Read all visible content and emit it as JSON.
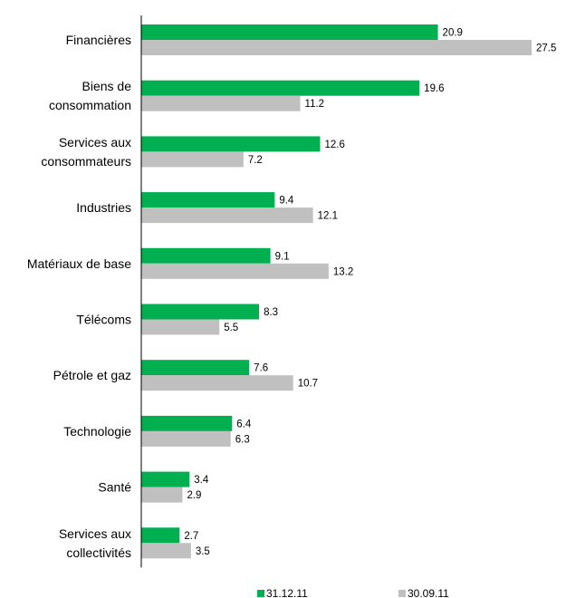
{
  "chart_data": {
    "type": "bar",
    "orientation": "horizontal",
    "categories": [
      [
        "Financières"
      ],
      [
        "Biens de",
        "consommation"
      ],
      [
        "Services aux",
        "consommateurs"
      ],
      [
        "Industries"
      ],
      [
        "Matériaux de base"
      ],
      [
        "Télécoms"
      ],
      [
        "Pétrole et gaz"
      ],
      [
        "Technologie"
      ],
      [
        "Santé"
      ],
      [
        "Services aux",
        "collectivités"
      ]
    ],
    "series": [
      {
        "name": "31.12.11",
        "color": "#00b050",
        "values": [
          20.9,
          19.6,
          12.6,
          9.4,
          9.1,
          8.3,
          7.6,
          6.4,
          3.4,
          2.7
        ],
        "labels": [
          "20.9",
          "19.6",
          "12.6",
          "9.4",
          "9.1",
          "8.3",
          "7.6",
          "6.4",
          "3.4",
          "2.7"
        ]
      },
      {
        "name": "30.09.11",
        "color": "#c0c0c0",
        "values": [
          27.5,
          11.2,
          7.2,
          12.1,
          13.2,
          5.5,
          10.7,
          6.3,
          2.9,
          3.5
        ],
        "labels": [
          "27.5",
          "11.2",
          "7.2",
          "12.1",
          "13.2",
          "5.5",
          "10.7",
          "6.3",
          "2.9",
          "3.5"
        ]
      }
    ],
    "xlim": [
      0,
      30
    ],
    "legend": "bottom",
    "grid": false,
    "title": "",
    "xlabel": "",
    "ylabel": ""
  }
}
